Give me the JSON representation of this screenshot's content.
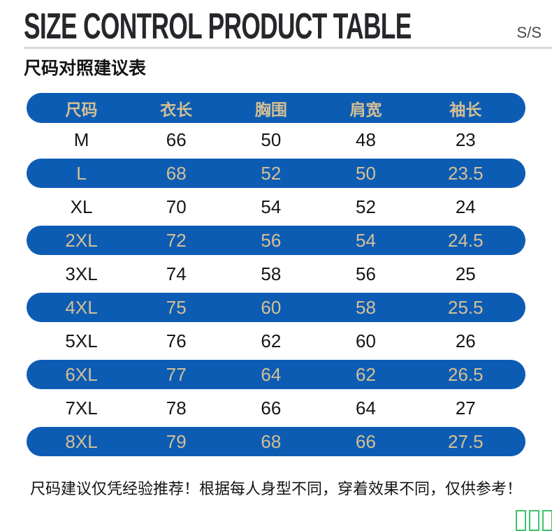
{
  "header": {
    "title": "SIZE CONTROL PRODUCT TABLE",
    "season_label": "S/S",
    "subtitle": "尺码对照建议表"
  },
  "footer": {
    "note": "尺码建议仅凭经验推荐！根据每人身型不同，穿着效果不同，仅供参考！"
  },
  "watermark": {
    "count": 4,
    "color": "#3cc468"
  },
  "colors": {
    "row_blue": "#0d5cb4",
    "gold_text": "#d4c094",
    "title_text": "#26272b",
    "divider": "#dadada"
  },
  "chart_data": {
    "type": "table",
    "title": "SIZE CONTROL PRODUCT TABLE / 尺码对照建议表",
    "columns": [
      "尺码",
      "衣长",
      "胸围",
      "肩宽",
      "袖长"
    ],
    "rows": [
      [
        "M",
        66,
        50,
        48,
        23
      ],
      [
        "L",
        68,
        52,
        50,
        23.5
      ],
      [
        "XL",
        70,
        54,
        52,
        24
      ],
      [
        "2XL",
        72,
        56,
        54,
        24.5
      ],
      [
        "3XL",
        74,
        58,
        56,
        25
      ],
      [
        "4XL",
        75,
        60,
        58,
        25.5
      ],
      [
        "5XL",
        76,
        62,
        60,
        26
      ],
      [
        "6XL",
        77,
        64,
        62,
        26.5
      ],
      [
        "7XL",
        78,
        66,
        64,
        27
      ],
      [
        "8XL",
        79,
        68,
        66,
        27.5
      ]
    ],
    "highlighted_row_indexes": [
      1,
      3,
      5,
      7,
      9
    ],
    "layout": {
      "header_style": "blue-pill-gold-text",
      "zebra": "alternating white and blue pill rows"
    }
  }
}
